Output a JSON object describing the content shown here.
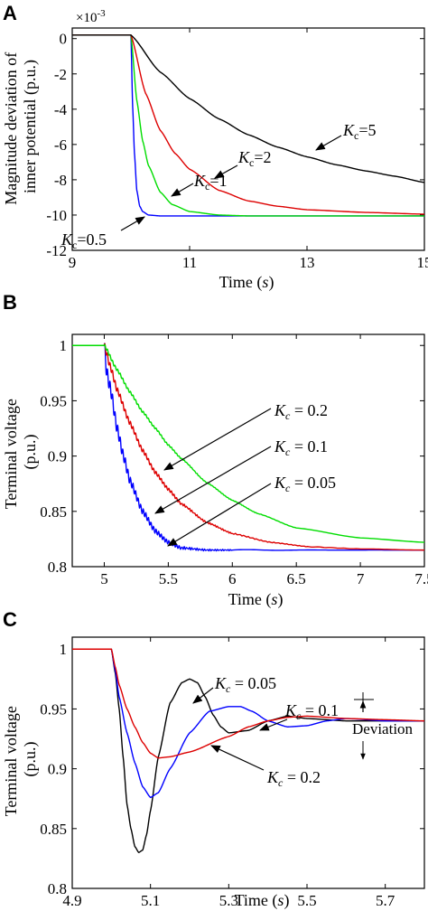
{
  "panels": [
    {
      "letter": "A",
      "ylabel_lines": [
        "Magnitude deviation of",
        "inner potential (p.u.)"
      ],
      "xlabel_text": "Time",
      "xlabel_var": "s",
      "multiplier_base": "×10",
      "multiplier_exp": "-3"
    },
    {
      "letter": "B",
      "ylabel_lines": [
        "Terminal voltage",
        "(p.u.)"
      ],
      "xlabel_text": "Time",
      "xlabel_var": "s"
    },
    {
      "letter": "C",
      "ylabel_lines": [
        "Terminal voltage",
        "(p.u.)"
      ],
      "xlabel_text": "Time",
      "xlabel_var": "s",
      "deviation_label": "Deviation"
    }
  ],
  "chart_data": [
    {
      "type": "line",
      "panel": "A",
      "xlabel": "Time (s)",
      "ylabel": "Magnitude deviation of inner potential (p.u.)",
      "xlim": [
        9,
        15
      ],
      "ylim": [
        -12,
        0.6
      ],
      "xticks": [
        9,
        11,
        13,
        15
      ],
      "yticks": [
        0,
        -2,
        -4,
        -6,
        -8,
        -10,
        -12
      ],
      "y_scale_note": "×10^-3",
      "series": [
        {
          "name": "Kc=0.5",
          "label_sym": "K",
          "label_sub": "c",
          "label_val": "=0.5",
          "color": "#0000ff",
          "x": [
            9,
            10,
            10.03,
            10.06,
            10.1,
            10.15,
            10.2,
            10.3,
            10.5,
            15
          ],
          "y": [
            0.2,
            0.2,
            -3.9,
            -6.5,
            -8.6,
            -9.5,
            -9.8,
            -10.0,
            -10.05,
            -10.05
          ]
        },
        {
          "name": "Kc=1",
          "label_sym": "K",
          "label_sub": "c",
          "label_val": "=1",
          "color": "#00dd00",
          "x": [
            9,
            10,
            10.1,
            10.2,
            10.3,
            10.5,
            10.7,
            11,
            11.5,
            12,
            15
          ],
          "y": [
            0.2,
            0.2,
            -3.5,
            -5.8,
            -7.2,
            -8.7,
            -9.4,
            -9.8,
            -10.0,
            -10.05,
            -10.05
          ]
        },
        {
          "name": "Kc=2",
          "label_sym": "K",
          "label_sub": "c",
          "label_val": "=2",
          "color": "#dd0000",
          "x": [
            9,
            10,
            10.25,
            10.5,
            10.75,
            11,
            11.5,
            12,
            12.5,
            13,
            14,
            15
          ],
          "y": [
            0.2,
            0.2,
            -3.1,
            -5.2,
            -6.5,
            -7.4,
            -8.6,
            -9.2,
            -9.5,
            -9.7,
            -9.85,
            -9.95
          ]
        },
        {
          "name": "Kc=5",
          "label_sym": "K",
          "label_sub": "c",
          "label_val": "=5",
          "color": "#000000",
          "x": [
            9,
            10,
            10.5,
            11,
            11.5,
            12,
            12.5,
            13,
            13.5,
            14,
            14.5,
            15
          ],
          "y": [
            0.2,
            0.2,
            -1.9,
            -3.4,
            -4.55,
            -5.45,
            -6.15,
            -6.7,
            -7.15,
            -7.5,
            -7.8,
            -8.15
          ]
        }
      ]
    },
    {
      "type": "line",
      "panel": "B",
      "xlabel": "Time (s)",
      "ylabel": "Terminal voltage (p.u.)",
      "xlim": [
        4.75,
        7.5
      ],
      "ylim": [
        0.8,
        1.01
      ],
      "xticks": [
        5,
        5.5,
        6,
        6.5,
        7,
        7.5
      ],
      "yticks": [
        0.8,
        0.85,
        0.9,
        0.95,
        1
      ],
      "series": [
        {
          "name": "Kc = 0.05",
          "label_sym": "K",
          "label_sub": "c",
          "label_val": " = 0.05",
          "color": "#0000ff",
          "x": [
            4.75,
            5.0,
            5.02,
            5.05,
            5.1,
            5.15,
            5.2,
            5.3,
            5.4,
            5.5,
            5.6,
            5.8,
            6.0,
            6.5,
            7.0,
            7.5
          ],
          "y": [
            1.0,
            1.0,
            0.975,
            0.96,
            0.925,
            0.9,
            0.878,
            0.85,
            0.832,
            0.822,
            0.817,
            0.815,
            0.815,
            0.815,
            0.815,
            0.815
          ]
        },
        {
          "name": "Kc = 0.1",
          "label_sym": "K",
          "label_sub": "c",
          "label_val": " = 0.1",
          "color": "#dd0000",
          "x": [
            4.75,
            5.0,
            5.05,
            5.1,
            5.2,
            5.3,
            5.4,
            5.5,
            5.6,
            5.8,
            6.0,
            6.3,
            6.6,
            7.0,
            7.5
          ],
          "y": [
            1.0,
            1.0,
            0.98,
            0.96,
            0.93,
            0.905,
            0.885,
            0.87,
            0.857,
            0.84,
            0.83,
            0.822,
            0.818,
            0.816,
            0.815
          ]
        },
        {
          "name": "Kc = 0.2",
          "label_sym": "K",
          "label_sub": "c",
          "label_val": " = 0.2",
          "color": "#00dd00",
          "x": [
            4.75,
            5.0,
            5.1,
            5.2,
            5.3,
            5.4,
            5.5,
            5.6,
            5.8,
            6.0,
            6.2,
            6.5,
            7.0,
            7.5
          ],
          "y": [
            1.0,
            1.0,
            0.978,
            0.958,
            0.94,
            0.925,
            0.91,
            0.898,
            0.876,
            0.86,
            0.848,
            0.835,
            0.826,
            0.822
          ]
        }
      ]
    },
    {
      "type": "line",
      "panel": "C",
      "xlabel": "Time (s)",
      "ylabel": "Terminal voltage (p.u.)",
      "xlim": [
        4.9,
        5.8
      ],
      "ylim": [
        0.8,
        1.01
      ],
      "xticks": [
        4.9,
        5.1,
        5.3,
        5.5,
        5.7
      ],
      "yticks": [
        0.8,
        0.85,
        0.9,
        0.95,
        1
      ],
      "series": [
        {
          "name": "Kc = 0.05",
          "label_sym": "K",
          "label_sub": "c",
          "label_val": " = 0.05",
          "color": "#000000",
          "x": [
            4.9,
            5.0,
            5.01,
            5.02,
            5.03,
            5.04,
            5.05,
            5.06,
            5.07,
            5.08,
            5.09,
            5.1,
            5.12,
            5.15,
            5.18,
            5.2,
            5.22,
            5.24,
            5.26,
            5.28,
            5.3,
            5.35,
            5.4,
            5.45,
            5.5,
            5.6,
            5.7,
            5.8
          ],
          "y": [
            1.0,
            1.0,
            0.98,
            0.95,
            0.91,
            0.87,
            0.85,
            0.835,
            0.83,
            0.832,
            0.845,
            0.865,
            0.91,
            0.955,
            0.972,
            0.975,
            0.972,
            0.96,
            0.945,
            0.935,
            0.93,
            0.932,
            0.94,
            0.944,
            0.942,
            0.94,
            0.94,
            0.94
          ]
        },
        {
          "name": "Kc = 0.1",
          "label_sym": "K",
          "label_sub": "c",
          "label_val": " = 0.1",
          "color": "#0000ff",
          "x": [
            4.9,
            5.0,
            5.01,
            5.02,
            5.04,
            5.06,
            5.08,
            5.1,
            5.12,
            5.15,
            5.2,
            5.25,
            5.3,
            5.33,
            5.36,
            5.4,
            5.45,
            5.5,
            5.55,
            5.6,
            5.7,
            5.8
          ],
          "y": [
            1.0,
            1.0,
            0.982,
            0.96,
            0.93,
            0.905,
            0.885,
            0.876,
            0.88,
            0.9,
            0.93,
            0.948,
            0.952,
            0.952,
            0.948,
            0.94,
            0.935,
            0.936,
            0.94,
            0.942,
            0.94,
            0.94
          ]
        },
        {
          "name": "Kc = 0.2",
          "label_sym": "K",
          "label_sub": "c",
          "label_val": " = 0.2",
          "color": "#dd0000",
          "x": [
            4.9,
            5.0,
            5.01,
            5.02,
            5.04,
            5.06,
            5.08,
            5.1,
            5.12,
            5.15,
            5.2,
            5.3,
            5.35,
            5.4,
            5.45,
            5.5,
            5.6,
            5.7,
            5.8
          ],
          "y": [
            1.0,
            1.0,
            0.985,
            0.97,
            0.95,
            0.935,
            0.922,
            0.913,
            0.909,
            0.91,
            0.914,
            0.927,
            0.935,
            0.94,
            0.943,
            0.944,
            0.942,
            0.941,
            0.94
          ]
        }
      ]
    }
  ]
}
